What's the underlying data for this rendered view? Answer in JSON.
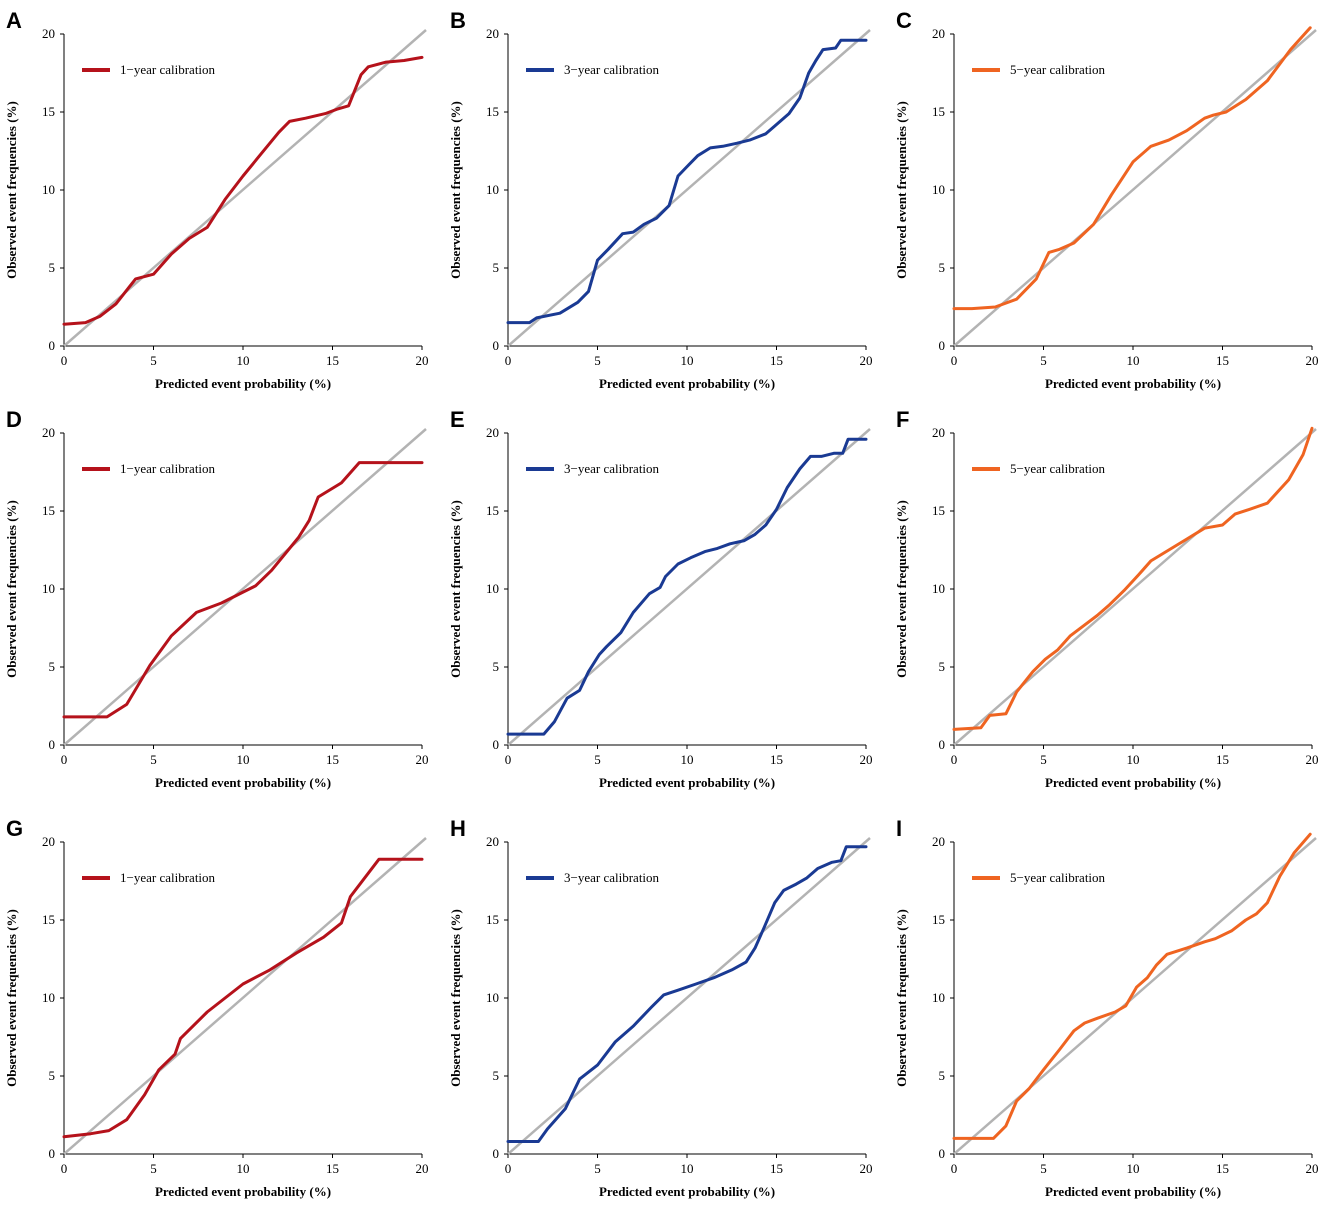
{
  "chart_data": [
    {
      "panel": "A",
      "type": "line",
      "xlabel": "Predicted event probability (%)",
      "ylabel": "Observed event frequencies (%)",
      "xlim": [
        0,
        20
      ],
      "ylim": [
        0,
        20
      ],
      "xticks": [
        "0",
        "5",
        "10",
        "15",
        "20"
      ],
      "yticks": [
        "0",
        "5",
        "10",
        "15",
        "20"
      ],
      "reference": [
        [
          0,
          0
        ],
        [
          20,
          20
        ]
      ],
      "series": [
        {
          "name": "1−year calibration",
          "color": "#b5121b",
          "x": [
            0,
            1.2,
            2,
            2.9,
            4,
            5,
            6,
            7,
            8,
            9,
            10,
            11,
            12,
            12.6,
            13.5,
            14.6,
            15.3,
            15.9,
            16.6,
            17,
            18,
            19,
            20
          ],
          "y": [
            1.4,
            1.5,
            1.9,
            2.7,
            4.3,
            4.6,
            5.9,
            6.9,
            7.6,
            9.4,
            10.9,
            12.3,
            13.7,
            14.4,
            14.6,
            14.9,
            15.2,
            15.4,
            17.4,
            17.9,
            18.2,
            18.3,
            18.5
          ]
        }
      ]
    },
    {
      "panel": "B",
      "type": "line",
      "xlabel": "Predicted event probability (%)",
      "ylabel": "Observed event frequencies (%)",
      "xlim": [
        0,
        20
      ],
      "ylim": [
        0,
        20
      ],
      "xticks": [
        "0",
        "5",
        "10",
        "15",
        "20"
      ],
      "yticks": [
        "0",
        "5",
        "10",
        "15",
        "20"
      ],
      "reference": [
        [
          0,
          0
        ],
        [
          20,
          20
        ]
      ],
      "series": [
        {
          "name": "3−year calibration",
          "color": "#1a3a93",
          "x": [
            0,
            1.2,
            1.6,
            2.9,
            3.9,
            4.5,
            5,
            5.6,
            6.4,
            7,
            7.6,
            8.3,
            9,
            9.5,
            10,
            10.6,
            11.3,
            12,
            12.8,
            13.5,
            14.4,
            15,
            15.7,
            16.3,
            16.8,
            17.2,
            17.6,
            18.3,
            18.6,
            19,
            20
          ],
          "y": [
            1.5,
            1.5,
            1.8,
            2.1,
            2.8,
            3.5,
            5.5,
            6.2,
            7.2,
            7.3,
            7.8,
            8.2,
            9,
            10.9,
            11.5,
            12.2,
            12.7,
            12.8,
            13,
            13.2,
            13.6,
            14.2,
            14.9,
            15.9,
            17.5,
            18.3,
            19,
            19.1,
            19.6,
            19.6,
            19.6
          ]
        }
      ]
    },
    {
      "panel": "C",
      "type": "line",
      "xlabel": "Predicted event probability (%)",
      "ylabel": "Observed event frequencies (%)",
      "xlim": [
        0,
        20
      ],
      "ylim": [
        0,
        20
      ],
      "xticks": [
        "0",
        "5",
        "10",
        "15",
        "20"
      ],
      "yticks": [
        "0",
        "5",
        "10",
        "15",
        "20"
      ],
      "reference": [
        [
          0,
          0
        ],
        [
          20,
          20
        ]
      ],
      "series": [
        {
          "name": "5−year calibration",
          "color": "#ef6421",
          "x": [
            0,
            1,
            2.3,
            3.5,
            4.6,
            5.3,
            5.9,
            6.7,
            7.8,
            8.8,
            10,
            11,
            12,
            13,
            14,
            14.5,
            15.2,
            16.3,
            17.5,
            18.8,
            19.9
          ],
          "y": [
            2.4,
            2.4,
            2.5,
            3,
            4.3,
            6,
            6.2,
            6.6,
            7.8,
            9.7,
            11.8,
            12.8,
            13.2,
            13.8,
            14.6,
            14.8,
            15,
            15.8,
            17,
            19,
            20.4
          ]
        }
      ]
    },
    {
      "panel": "D",
      "type": "line",
      "xlabel": "Predicted event probability (%)",
      "ylabel": "Observed event frequencies (%)",
      "xlim": [
        0,
        20
      ],
      "ylim": [
        0,
        20
      ],
      "xticks": [
        "0",
        "5",
        "10",
        "15",
        "20"
      ],
      "yticks": [
        "0",
        "5",
        "10",
        "15",
        "20"
      ],
      "reference": [
        [
          0,
          0
        ],
        [
          20,
          20
        ]
      ],
      "series": [
        {
          "name": "1−year calibration",
          "color": "#b5121b",
          "x": [
            0,
            2.4,
            3.5,
            4.8,
            6,
            7.4,
            8.8,
            10,
            10.7,
            11.6,
            13.1,
            13.7,
            14.2,
            15.5,
            16.5,
            18,
            20
          ],
          "y": [
            1.8,
            1.8,
            2.6,
            5.1,
            7,
            8.5,
            9.1,
            9.8,
            10.2,
            11.2,
            13.3,
            14.4,
            15.9,
            16.8,
            18.1,
            18.1,
            18.1
          ]
        }
      ]
    },
    {
      "panel": "E",
      "type": "line",
      "xlabel": "Predicted event probability (%)",
      "ylabel": "Observed event frequencies (%)",
      "xlim": [
        0,
        20
      ],
      "ylim": [
        0,
        20
      ],
      "xticks": [
        "0",
        "5",
        "10",
        "15",
        "20"
      ],
      "yticks": [
        "0",
        "5",
        "10",
        "15",
        "20"
      ],
      "reference": [
        [
          0,
          0
        ],
        [
          20,
          20
        ]
      ],
      "series": [
        {
          "name": "3−year calibration",
          "color": "#1a3a93",
          "x": [
            0,
            2,
            2.6,
            3.3,
            4,
            4.5,
            5.1,
            5.5,
            6.3,
            7,
            7.9,
            8.5,
            8.8,
            9.5,
            10.2,
            11,
            11.7,
            12.4,
            13.2,
            13.8,
            14.4,
            15,
            15.6,
            16.3,
            16.9,
            17.5,
            18.2,
            18.7,
            19,
            20
          ],
          "y": [
            0.7,
            0.7,
            1.5,
            3,
            3.5,
            4.7,
            5.8,
            6.3,
            7.2,
            8.5,
            9.7,
            10.1,
            10.8,
            11.6,
            12,
            12.4,
            12.6,
            12.9,
            13.1,
            13.5,
            14.1,
            15.1,
            16.5,
            17.7,
            18.5,
            18.5,
            18.7,
            18.7,
            19.6,
            19.6
          ]
        }
      ]
    },
    {
      "panel": "F",
      "type": "line",
      "xlabel": "Predicted event probability (%)",
      "ylabel": "Observed event frequencies (%)",
      "xlim": [
        0,
        20
      ],
      "ylim": [
        0,
        20
      ],
      "xticks": [
        "0",
        "5",
        "10",
        "15",
        "20"
      ],
      "yticks": [
        "0",
        "5",
        "10",
        "15",
        "20"
      ],
      "reference": [
        [
          0,
          0
        ],
        [
          20,
          20
        ]
      ],
      "series": [
        {
          "name": "5−year calibration",
          "color": "#ef6421",
          "x": [
            0,
            1.5,
            2,
            2.9,
            3.5,
            4.4,
            5.1,
            5.8,
            6.5,
            7.3,
            8,
            8.7,
            9.5,
            10.3,
            11,
            12,
            13,
            14,
            15,
            15.7,
            16.5,
            17.5,
            18.7,
            19.5,
            20
          ],
          "y": [
            1,
            1.1,
            1.9,
            2,
            3.4,
            4.7,
            5.5,
            6.1,
            7,
            7.7,
            8.3,
            9,
            9.9,
            10.9,
            11.8,
            12.5,
            13.2,
            13.9,
            14.1,
            14.8,
            15.1,
            15.5,
            17,
            18.6,
            20.3
          ]
        }
      ]
    },
    {
      "panel": "G",
      "type": "line",
      "xlabel": "Predicted event probability (%)",
      "ylabel": "Observed event frequencies (%)",
      "xlim": [
        0,
        20
      ],
      "ylim": [
        0,
        20
      ],
      "xticks": [
        "0",
        "5",
        "10",
        "15",
        "20"
      ],
      "yticks": [
        "0",
        "5",
        "10",
        "15",
        "20"
      ],
      "reference": [
        [
          0,
          0
        ],
        [
          20,
          20
        ]
      ],
      "series": [
        {
          "name": "1−year calibration",
          "color": "#b5121b",
          "x": [
            0,
            1.5,
            2.5,
            3.5,
            4.5,
            5.3,
            6.2,
            6.5,
            8,
            10,
            11.5,
            13,
            14.5,
            15.5,
            16,
            17.6,
            18.5,
            20
          ],
          "y": [
            1.1,
            1.3,
            1.5,
            2.2,
            3.8,
            5.4,
            6.4,
            7.4,
            9.1,
            10.9,
            11.8,
            12.9,
            13.9,
            14.8,
            16.5,
            18.9,
            18.9,
            18.9
          ]
        }
      ]
    },
    {
      "panel": "H",
      "type": "line",
      "xlabel": "Predicted event probability (%)",
      "ylabel": "Observed event frequencies (%)",
      "xlim": [
        0,
        20
      ],
      "ylim": [
        0,
        20
      ],
      "xticks": [
        "0",
        "5",
        "10",
        "15",
        "20"
      ],
      "yticks": [
        "0",
        "5",
        "10",
        "15",
        "20"
      ],
      "reference": [
        [
          0,
          0
        ],
        [
          20,
          20
        ]
      ],
      "series": [
        {
          "name": "3−year calibration",
          "color": "#1a3a93",
          "x": [
            0,
            1.7,
            2.2,
            3.2,
            4,
            5,
            6,
            7,
            8,
            8.7,
            9.5,
            10.5,
            11.5,
            12.5,
            13.3,
            13.8,
            14.3,
            14.9,
            15.4,
            16.1,
            16.7,
            17.3,
            18.1,
            18.6,
            18.9,
            20
          ],
          "y": [
            0.8,
            0.8,
            1.6,
            2.9,
            4.8,
            5.7,
            7.2,
            8.2,
            9.4,
            10.2,
            10.5,
            10.9,
            11.3,
            11.8,
            12.3,
            13.2,
            14.5,
            16.1,
            16.9,
            17.3,
            17.7,
            18.3,
            18.7,
            18.8,
            19.7,
            19.7
          ]
        }
      ]
    },
    {
      "panel": "I",
      "type": "line",
      "xlabel": "Predicted event probability (%)",
      "ylabel": "Observed event frequencies (%)",
      "xlim": [
        0,
        20
      ],
      "ylim": [
        0,
        20
      ],
      "xticks": [
        "0",
        "5",
        "10",
        "15",
        "20"
      ],
      "yticks": [
        "0",
        "5",
        "10",
        "15",
        "20"
      ],
      "reference": [
        [
          0,
          0
        ],
        [
          20,
          20
        ]
      ],
      "series": [
        {
          "name": "5−year calibration",
          "color": "#ef6421",
          "x": [
            0,
            2.2,
            2.9,
            3.5,
            4.2,
            5,
            5.9,
            6.7,
            7.3,
            8,
            9,
            9.6,
            10.2,
            10.8,
            11.3,
            11.9,
            13,
            14,
            14.6,
            15.5,
            16.3,
            16.9,
            17.5,
            18.2,
            19,
            19.9
          ],
          "y": [
            1,
            1,
            1.8,
            3.4,
            4.2,
            5.4,
            6.7,
            7.9,
            8.4,
            8.7,
            9.1,
            9.5,
            10.7,
            11.3,
            12.1,
            12.8,
            13.2,
            13.6,
            13.8,
            14.3,
            15,
            15.4,
            16.1,
            17.8,
            19.3,
            20.5
          ]
        }
      ]
    }
  ]
}
